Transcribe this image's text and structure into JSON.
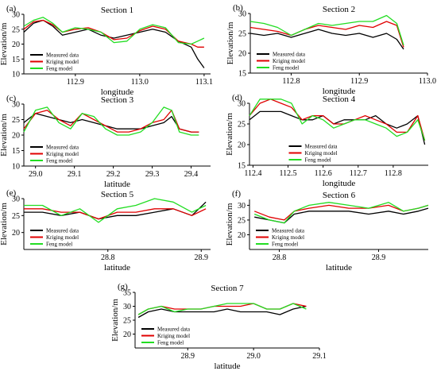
{
  "legend_labels": [
    "Measured data",
    "Kriging model",
    "Feng model"
  ],
  "series_colors": {
    "Measured data": "#000000",
    "Kriging model": "#e00000",
    "Feng model": "#22dd22"
  },
  "chart_data": [
    {
      "panel": "(a)",
      "type": "line",
      "title": "Section 1",
      "xlabel": "longitude",
      "ylabel": "Elevation/m",
      "xlim": [
        112.82,
        113.11
      ],
      "ylim": [
        10,
        30
      ],
      "xticks": [
        112.9,
        113.0,
        113.1
      ],
      "xtick_labels": [
        "112.9",
        "113.0",
        "113.1"
      ],
      "yticks": [
        10,
        15,
        20,
        25,
        30
      ],
      "ytick_labels": [
        "10",
        "15",
        "20",
        "25",
        "30"
      ],
      "legend_position": "bottom-left",
      "x": [
        112.82,
        112.835,
        112.85,
        112.865,
        112.88,
        112.9,
        112.92,
        112.94,
        112.96,
        112.98,
        113.0,
        113.02,
        113.04,
        113.06,
        113.08,
        113.09,
        113.1
      ],
      "series": [
        {
          "name": "Measured data",
          "values": [
            24,
            27,
            28,
            26,
            23,
            24,
            25,
            23,
            22,
            23,
            24,
            25,
            24,
            21,
            19,
            15,
            12
          ]
        },
        {
          "name": "Kriging model",
          "values": [
            25,
            27.5,
            28,
            26.5,
            24,
            25,
            25.5,
            24,
            21.5,
            22,
            24.5,
            26,
            25,
            21,
            20,
            19,
            19
          ]
        },
        {
          "name": "Feng model",
          "values": [
            26,
            28,
            29,
            27,
            24,
            25.5,
            25,
            24,
            20.5,
            21,
            25,
            26.5,
            25.5,
            20.5,
            20,
            21,
            22
          ]
        }
      ]
    },
    {
      "panel": "(b)",
      "type": "line",
      "title": "Section 2",
      "xlabel": "longitude",
      "ylabel": "Elevation/m",
      "xlim": [
        112.74,
        113.0
      ],
      "ylim": [
        15,
        30
      ],
      "xticks": [
        112.8,
        112.9,
        113.0
      ],
      "xtick_labels": [
        "112.8",
        "112.9",
        "113.0"
      ],
      "yticks": [
        15,
        20,
        25,
        30
      ],
      "ytick_labels": [
        "15",
        "20",
        "25",
        "30"
      ],
      "legend_position": "bottom-left",
      "x": [
        112.74,
        112.76,
        112.78,
        112.8,
        112.82,
        112.84,
        112.86,
        112.88,
        112.9,
        112.92,
        112.94,
        112.955,
        112.965
      ],
      "series": [
        {
          "name": "Measured data",
          "values": [
            25,
            24.5,
            25,
            24,
            25,
            26,
            25,
            24.5,
            25,
            24,
            25,
            23.5,
            21
          ]
        },
        {
          "name": "Kriging model",
          "values": [
            26.5,
            26,
            25.5,
            24.5,
            26,
            27,
            26.5,
            26,
            27,
            26.5,
            28,
            27,
            21.5
          ]
        },
        {
          "name": "Feng model",
          "values": [
            28,
            27.5,
            26.5,
            24.5,
            26,
            27.5,
            27,
            27.5,
            28,
            28,
            29.5,
            27.5,
            22
          ]
        }
      ]
    },
    {
      "panel": "(c)",
      "type": "line",
      "title": "Section 3",
      "xlabel": "latitude",
      "ylabel": "Elevation/m",
      "xlim": [
        28.97,
        29.45
      ],
      "ylim": [
        10,
        30
      ],
      "xticks": [
        29.0,
        29.1,
        29.2,
        29.3,
        29.4
      ],
      "xtick_labels": [
        "29.0",
        "29.1",
        "29.2",
        "29.3",
        "29.4"
      ],
      "yticks": [
        10,
        15,
        20,
        25,
        30
      ],
      "ytick_labels": [
        "10",
        "15",
        "20",
        "25",
        "30"
      ],
      "legend_position": "bottom-left",
      "x": [
        28.97,
        29.0,
        29.03,
        29.06,
        29.09,
        29.12,
        29.15,
        29.18,
        29.21,
        29.24,
        29.27,
        29.3,
        29.33,
        29.35,
        29.37,
        29.4,
        29.42
      ],
      "series": [
        {
          "name": "Measured data",
          "values": [
            24,
            27,
            26,
            25,
            24,
            25,
            24,
            23,
            22,
            22,
            22,
            23,
            24,
            26,
            22,
            21,
            21
          ]
        },
        {
          "name": "Kriging model",
          "values": [
            22,
            27,
            28,
            25,
            23,
            27,
            25,
            23,
            21,
            21,
            22,
            24,
            25,
            28,
            22,
            21,
            21
          ]
        },
        {
          "name": "Feng model",
          "values": [
            21,
            28,
            29,
            24,
            22,
            27,
            26,
            22,
            20,
            20,
            21,
            24,
            29,
            28,
            21,
            20,
            20
          ]
        }
      ]
    },
    {
      "panel": "(d)",
      "type": "line",
      "title": "Section 4",
      "xlabel": "longitude",
      "ylabel": "Elevation/m",
      "xlim": [
        112.39,
        112.9
      ],
      "ylim": [
        15,
        30
      ],
      "xticks": [
        112.4,
        112.5,
        112.6,
        112.7,
        112.8
      ],
      "xtick_labels": [
        "112.4",
        "112.5",
        "112.6",
        "112.7",
        "112.8"
      ],
      "yticks": [
        15,
        20,
        25,
        30
      ],
      "ytick_labels": [
        "15",
        "20",
        "25",
        "30"
      ],
      "legend_position": "bottom-center",
      "x": [
        112.39,
        112.42,
        112.45,
        112.48,
        112.51,
        112.54,
        112.57,
        112.6,
        112.63,
        112.66,
        112.69,
        112.72,
        112.75,
        112.78,
        112.81,
        112.84,
        112.87,
        112.89
      ],
      "series": [
        {
          "name": "Measured data",
          "values": [
            26,
            28,
            28,
            28,
            27,
            26,
            26,
            27,
            25,
            26,
            26,
            26,
            27,
            25,
            24,
            25,
            27,
            20
          ]
        },
        {
          "name": "Kriging model",
          "values": [
            27,
            30,
            31,
            30,
            29,
            26,
            27,
            27,
            25,
            25,
            26,
            27,
            26,
            25,
            23,
            23,
            27,
            21
          ]
        },
        {
          "name": "Feng model",
          "values": [
            27,
            31,
            31,
            31,
            30,
            25,
            27,
            26,
            24,
            25,
            26,
            26,
            25,
            24,
            22,
            23,
            26,
            21
          ]
        }
      ]
    },
    {
      "panel": "(e)",
      "type": "line",
      "title": "Section 5",
      "xlabel": "latitude",
      "ylabel": "Elevation/m",
      "xlim": [
        28.71,
        28.91
      ],
      "ylim": [
        15,
        30
      ],
      "xticks": [
        28.8,
        28.9
      ],
      "xtick_labels": [
        "28.8",
        "28.9"
      ],
      "yticks": [
        20,
        25,
        30
      ],
      "ytick_labels": [
        "20",
        "25",
        "30"
      ],
      "legend_position": "bottom-left",
      "x": [
        28.71,
        28.73,
        28.75,
        28.77,
        28.79,
        28.81,
        28.83,
        28.85,
        28.87,
        28.89,
        28.905
      ],
      "series": [
        {
          "name": "Measured data",
          "values": [
            26,
            26,
            25,
            26,
            24,
            25,
            25,
            26,
            27,
            25,
            29
          ]
        },
        {
          "name": "Kriging model",
          "values": [
            27,
            27,
            26,
            26,
            24,
            26,
            26,
            27,
            27,
            25,
            27
          ]
        },
        {
          "name": "Feng model",
          "values": [
            28,
            28,
            25,
            27,
            23,
            27,
            28,
            30,
            29,
            26,
            28
          ]
        }
      ]
    },
    {
      "panel": "(f)",
      "type": "line",
      "title": "Section 6",
      "xlabel": "latitude",
      "ylabel": "Elevation/m",
      "xlim": [
        28.77,
        28.95
      ],
      "ylim": [
        15,
        32
      ],
      "xticks": [
        28.8,
        28.9
      ],
      "xtick_labels": [
        "28.8",
        "28.9"
      ],
      "yticks": [
        20,
        25,
        30
      ],
      "ytick_labels": [
        "20",
        "25",
        "30"
      ],
      "legend_position": "bottom-left",
      "x": [
        28.775,
        28.79,
        28.805,
        28.815,
        28.83,
        28.85,
        28.87,
        28.89,
        28.91,
        28.925,
        28.94,
        28.95
      ],
      "series": [
        {
          "name": "Measured data",
          "values": [
            26,
            25,
            24,
            27,
            28,
            28,
            28,
            27,
            28,
            27,
            28,
            29
          ]
        },
        {
          "name": "Kriging model",
          "values": [
            28,
            26,
            25,
            28,
            29,
            30,
            29,
            29,
            30,
            28,
            29,
            30
          ]
        },
        {
          "name": "Feng model",
          "values": [
            27,
            25,
            24,
            28,
            30,
            31,
            30,
            29,
            31,
            28,
            29,
            30
          ]
        }
      ]
    },
    {
      "panel": "(g)",
      "type": "line",
      "title": "Section 7",
      "xlabel": "latitude",
      "ylabel": "Elevation/m",
      "xlim": [
        28.82,
        29.1
      ],
      "ylim": [
        15,
        35
      ],
      "xticks": [
        28.9,
        29.0,
        29.1
      ],
      "xtick_labels": [
        "28.9",
        "29.0",
        "29.1"
      ],
      "yticks": [
        20,
        25,
        30,
        35
      ],
      "ytick_labels": [
        "20",
        "25",
        "30",
        "35"
      ],
      "legend_position": "bottom-left",
      "x": [
        28.825,
        28.84,
        28.86,
        28.88,
        28.9,
        28.92,
        28.94,
        28.96,
        28.98,
        29.0,
        29.02,
        29.04,
        29.06,
        29.08
      ],
      "series": [
        {
          "name": "Measured data",
          "values": [
            26,
            28,
            29,
            28,
            28,
            28,
            28,
            29,
            28,
            28,
            28,
            27,
            29,
            30
          ]
        },
        {
          "name": "Kriging model",
          "values": [
            27,
            29,
            30,
            29,
            29,
            29,
            30,
            30,
            30,
            31,
            29,
            29,
            31,
            30
          ]
        },
        {
          "name": "Feng model",
          "values": [
            27,
            29,
            30,
            28,
            29,
            29,
            30,
            31,
            31,
            31,
            29,
            29,
            31,
            29
          ]
        }
      ]
    }
  ]
}
